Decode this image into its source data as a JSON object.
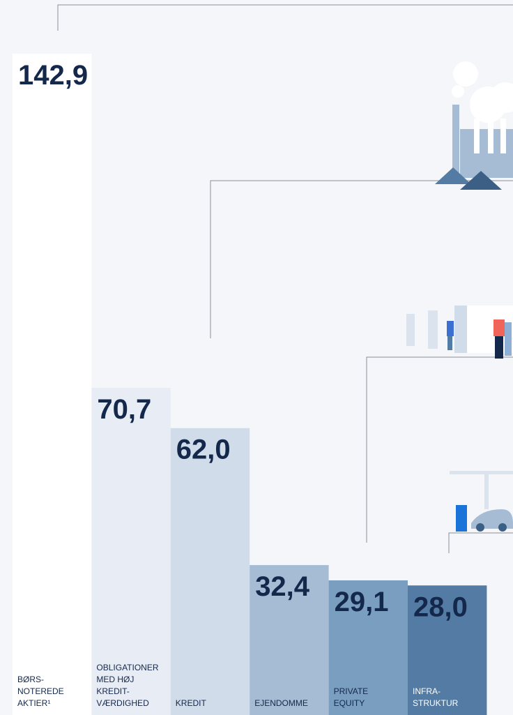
{
  "chart_data": {
    "type": "bar",
    "categories": [
      [
        "BØRS-",
        "NOTEREDE",
        "AKTIER¹"
      ],
      [
        "OBLIGATIONER",
        "MED HØJ",
        "KREDIT-",
        "VÆRDIGHED"
      ],
      [
        "KREDIT"
      ],
      [
        "EJENDOMME"
      ],
      [
        "PRIVATE",
        "EQUITY"
      ],
      [
        "INFRA-",
        "STRUKTUR"
      ]
    ],
    "values": [
      142.9,
      70.7,
      62.0,
      32.4,
      29.1,
      28.0
    ],
    "value_labels": [
      "142,9",
      "70,7",
      "62,0",
      "32,4",
      "29,1",
      "28,0"
    ],
    "colors": [
      "#ffffff",
      "#e8edf5",
      "#d0dcea",
      "#a6bcd5",
      "#7a9ebf",
      "#537ba3"
    ],
    "ylim": [
      0,
      150
    ]
  }
}
